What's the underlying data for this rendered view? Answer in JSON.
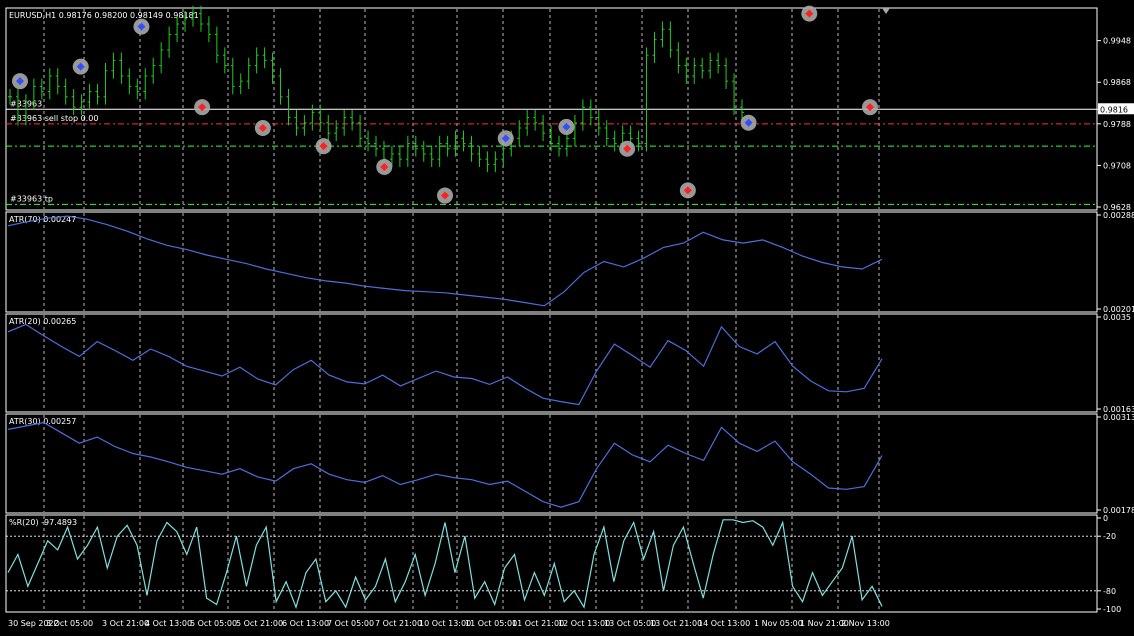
{
  "colors": {
    "background": "#000000",
    "frame": "#ffffff",
    "grid": "#ffffff",
    "bull_bar": "#22cc22",
    "atr_line": "#4d6edb",
    "wpr_line": "#7fe0e0",
    "buy_arrow": "#3050ff",
    "sell_arrow": "#ff2020",
    "trade_halo": "#a8a8a8",
    "sl_line": "#ff3030",
    "tp_line": "#30ff30",
    "price_line": "#ffffff"
  },
  "chart_data": [
    {
      "type": "line",
      "title": "EURUSD,H1  0.98176 0.98200 0.98149 0.98181",
      "symbol": "EURUSD,H1",
      "ohlc": [
        "0.98176",
        "0.98200",
        "0.98149",
        "0.98181"
      ],
      "bar_style": "bars",
      "y_ticks": [
        "0.9948",
        "0.9868",
        "0.9816",
        "0.9788",
        "0.9708",
        "0.9628"
      ],
      "ylim": [
        0.9628,
        1.0005
      ],
      "current_price": "0.9816",
      "levels": [
        {
          "label": "#33963",
          "value": 0.9816,
          "style": "price"
        },
        {
          "label": "#33963 sell stop 0.00",
          "value": 0.9788,
          "style": "stop"
        },
        {
          "label": "",
          "value": 0.9745,
          "style": "tp"
        },
        {
          "label": "#33963 tp",
          "value": 0.9633,
          "style": "tp"
        }
      ],
      "close": [
        0.984,
        0.98,
        0.983,
        0.986,
        0.985,
        0.988,
        0.986,
        0.984,
        0.982,
        0.983,
        0.985,
        0.984,
        0.989,
        0.991,
        0.988,
        0.986,
        0.985,
        0.988,
        0.99,
        0.993,
        0.996,
        0.998,
        0.999,
        1.0,
        0.998,
        0.996,
        0.992,
        0.99,
        0.986,
        0.987,
        0.99,
        0.992,
        0.991,
        0.988,
        0.984,
        0.98,
        0.978,
        0.979,
        0.981,
        0.979,
        0.977,
        0.978,
        0.98,
        0.979,
        0.976,
        0.975,
        0.974,
        0.972,
        0.973,
        0.972,
        0.975,
        0.974,
        0.973,
        0.972,
        0.975,
        0.974,
        0.976,
        0.975,
        0.973,
        0.972,
        0.971,
        0.972,
        0.974,
        0.976,
        0.978,
        0.98,
        0.979,
        0.977,
        0.975,
        0.974,
        0.976,
        0.979,
        0.982,
        0.98,
        0.978,
        0.976,
        0.975,
        0.977,
        0.976,
        0.975,
        0.992,
        0.995,
        0.997,
        0.993,
        0.99,
        0.988,
        0.99,
        0.989,
        0.991,
        0.99,
        0.987,
        0.982,
        0.981
      ],
      "trade_markers": [
        {
          "side": "buy",
          "value": 0.987
        },
        {
          "side": "buy",
          "value": 0.9898
        },
        {
          "side": "buy",
          "value": 0.9975
        },
        {
          "side": "sell",
          "value": 0.982
        },
        {
          "side": "sell",
          "value": 0.978
        },
        {
          "side": "sell",
          "value": 0.9745
        },
        {
          "side": "sell",
          "value": 0.9705
        },
        {
          "side": "sell",
          "value": 0.965
        },
        {
          "side": "buy",
          "value": 0.976
        },
        {
          "side": "buy",
          "value": 0.9782
        },
        {
          "side": "sell",
          "value": 0.974
        },
        {
          "side": "sell",
          "value": 0.966
        },
        {
          "side": "buy",
          "value": 0.979
        },
        {
          "side": "sell",
          "value": 1.0
        },
        {
          "side": "sell",
          "value": 0.982
        }
      ]
    },
    {
      "type": "line",
      "title": "ATR(70) 0.00247",
      "y_ticks": [
        "0.00288",
        "0.00201"
      ],
      "ylim": [
        0.00201,
        0.00288
      ],
      "values": [
        0.00278,
        0.00282,
        0.00285,
        0.00287,
        0.00284,
        0.00279,
        0.00273,
        0.00266,
        0.0026,
        0.00256,
        0.00251,
        0.00247,
        0.00243,
        0.00238,
        0.00234,
        0.0023,
        0.00227,
        0.00225,
        0.00222,
        0.0022,
        0.00218,
        0.00217,
        0.00216,
        0.00214,
        0.00212,
        0.0021,
        0.00207,
        0.00204,
        0.00217,
        0.00235,
        0.00245,
        0.0024,
        0.00248,
        0.00258,
        0.00262,
        0.00272,
        0.00265,
        0.00262,
        0.00265,
        0.00258,
        0.0025,
        0.00244,
        0.0024,
        0.00238,
        0.00247
      ]
    },
    {
      "type": "line",
      "title": "ATR(20) 0.00265",
      "y_ticks": [
        "0.0035",
        "0.00163"
      ],
      "ylim": [
        0.00163,
        0.0035
      ],
      "values": [
        0.0032,
        0.00335,
        0.00312,
        0.0029,
        0.0027,
        0.003,
        0.00282,
        0.00262,
        0.00285,
        0.0027,
        0.0025,
        0.0024,
        0.0023,
        0.00248,
        0.00224,
        0.00212,
        0.00243,
        0.00262,
        0.00232,
        0.00218,
        0.00214,
        0.00232,
        0.0021,
        0.00225,
        0.0024,
        0.00228,
        0.00225,
        0.00213,
        0.00228,
        0.00205,
        0.00185,
        0.00178,
        0.00172,
        0.0024,
        0.00295,
        0.00272,
        0.00248,
        0.00302,
        0.00282,
        0.0025,
        0.0033,
        0.0029,
        0.00275,
        0.003,
        0.0025,
        0.0022,
        0.002,
        0.00198,
        0.00205,
        0.00265
      ]
    },
    {
      "type": "line",
      "title": "ATR(30) 0.00257",
      "y_ticks": [
        "0.00313",
        "0.00178"
      ],
      "ylim": [
        0.00178,
        0.00313
      ],
      "values": [
        0.00295,
        0.003,
        0.00305,
        0.0029,
        0.00275,
        0.00284,
        0.0027,
        0.0026,
        0.00255,
        0.00248,
        0.0024,
        0.00235,
        0.0023,
        0.00238,
        0.00226,
        0.0022,
        0.00238,
        0.00245,
        0.0023,
        0.00222,
        0.00218,
        0.00228,
        0.00215,
        0.00222,
        0.0023,
        0.00225,
        0.00222,
        0.00215,
        0.0022,
        0.00205,
        0.0019,
        0.00182,
        0.0019,
        0.00238,
        0.00275,
        0.00258,
        0.00248,
        0.00272,
        0.0026,
        0.0025,
        0.00298,
        0.00275,
        0.00263,
        0.00278,
        0.00248,
        0.0023,
        0.0021,
        0.00208,
        0.00212,
        0.00257
      ]
    },
    {
      "type": "line",
      "title": "%R(20) -97.4893",
      "y_ticks": [
        "0",
        "-20",
        "-80",
        "-100"
      ],
      "ylim": [
        -100,
        0
      ],
      "levels": [
        -20,
        -80
      ],
      "values": [
        -60,
        -40,
        -75,
        -50,
        -25,
        -35,
        -10,
        -45,
        -30,
        -10,
        -55,
        -20,
        -8,
        -30,
        -85,
        -25,
        -5,
        -15,
        -40,
        -10,
        -88,
        -95,
        -60,
        -20,
        -75,
        -30,
        -10,
        -92,
        -70,
        -98,
        -60,
        -45,
        -92,
        -80,
        -98,
        -65,
        -90,
        -75,
        -45,
        -92,
        -70,
        -40,
        -85,
        -50,
        -5,
        -60,
        -20,
        -88,
        -70,
        -95,
        -55,
        -40,
        -90,
        -60,
        -85,
        -50,
        -92,
        -80,
        -98,
        -40,
        -10,
        -70,
        -25,
        -5,
        -45,
        -15,
        -80,
        -30,
        -10,
        -50,
        -88,
        -40,
        -2,
        -2,
        -5,
        -3,
        -10,
        -30,
        -5,
        -75,
        -92,
        -60,
        -85,
        -70,
        -55,
        -20,
        -90,
        -75,
        -97
      ]
    }
  ],
  "x_axis": {
    "tick_labels": [
      "30 Sep 2022",
      "3 Oct 05:00",
      "3 Oct 21:00",
      "4 Oct 13:00",
      "5 Oct 05:00",
      "5 Oct 21:00",
      "6 Oct 13:00",
      "7 Oct 05:00",
      "7 Oct 21:00",
      "10 Oct 13:00",
      "11 Oct 05:00",
      "11 Oct 21:00",
      "12 Oct 13:00",
      "13 Oct 05:00",
      "13 Oct 21:00",
      "14 Oct 13:00",
      "1 Nov 05:00",
      "1 Nov 21:00",
      "2 Nov 13:00"
    ]
  }
}
